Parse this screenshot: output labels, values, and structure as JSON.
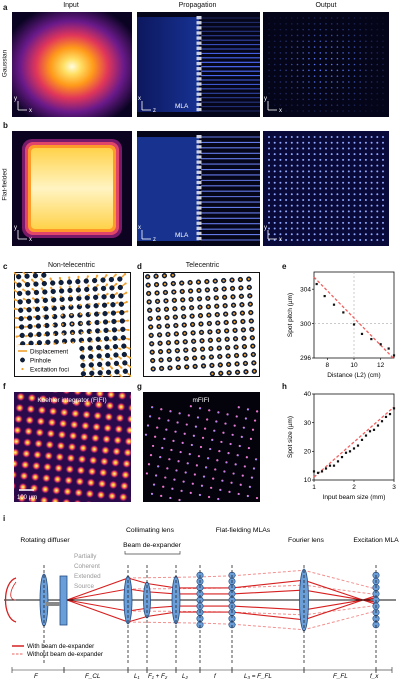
{
  "panels": {
    "a": {
      "letter": "a",
      "row_label": "Gaussian",
      "col_titles": [
        "Input",
        "Propagation",
        "Output"
      ],
      "mla_label": "MLA",
      "axes": {
        "y": "y",
        "x": "x",
        "z": "z"
      }
    },
    "b": {
      "letter": "b",
      "row_label": "Flat-fielded",
      "mla_label": "MLA"
    },
    "c": {
      "letter": "c",
      "title": "Non-telecentric",
      "legend": [
        "Displacement",
        "Pinhole",
        "Excitation foci"
      ]
    },
    "d": {
      "letter": "d",
      "title": "Telecentric"
    },
    "e": {
      "letter": "e"
    },
    "f": {
      "letter": "f",
      "title": "Koehler integrator (FIFI)",
      "scalebar": "100 µm"
    },
    "g": {
      "letter": "g",
      "title": "mFIFI"
    },
    "h": {
      "letter": "h"
    },
    "i": {
      "letter": "i",
      "labels": [
        "Rotating diffuser",
        "Collimating lens",
        "Beam de-expander",
        "Flat-fielding MLAs",
        "Fourier lens",
        "Excitation MLA"
      ],
      "pcs_lines": [
        "Partially",
        "Coherent",
        "Extended",
        "Source"
      ],
      "legend": [
        "With beam de-expander",
        "Without beam de-expander"
      ],
      "bottom_labels": [
        "F",
        "F_CL",
        "L₁",
        "F₁ + F₂",
        "L₂",
        "f",
        "L₃ = F_FL",
        "F_FL",
        "f_x"
      ]
    }
  },
  "chart_data": [
    {
      "type": "scatter",
      "panel": "e",
      "xlabel": "Distance (L2) (cm)",
      "ylabel": "Spot pitch (µm)",
      "xlim": [
        7,
        13
      ],
      "ylim": [
        296,
        306
      ],
      "xticks": [
        8,
        10,
        12
      ],
      "yticks": [
        296,
        300,
        304
      ],
      "x": [
        7.2,
        7.8,
        8.5,
        9.2,
        10.0,
        10.6,
        11.3,
        12.0,
        12.6,
        13.0
      ],
      "y": [
        304.6,
        303.2,
        302.2,
        301.3,
        299.9,
        298.8,
        298.2,
        297.6,
        297.1,
        296.3
      ],
      "fit": {
        "x": [
          7,
          13
        ],
        "y": [
          305.4,
          295.9
        ]
      },
      "reference": {
        "x": 10,
        "y": 300
      }
    },
    {
      "type": "scatter",
      "panel": "h",
      "xlabel": "Input beam size (mm)",
      "ylabel": "Spot size (µm)",
      "xlim": [
        1,
        3
      ],
      "ylim": [
        10,
        40
      ],
      "xticks": [
        1,
        2,
        3
      ],
      "yticks": [
        10,
        20,
        30,
        40
      ],
      "x": [
        1.0,
        1.1,
        1.2,
        1.3,
        1.4,
        1.5,
        1.6,
        1.7,
        1.8,
        1.9,
        2.0,
        2.1,
        2.2,
        2.3,
        2.4,
        2.5,
        2.6,
        2.7,
        2.8,
        2.9,
        3.0
      ],
      "y": [
        13,
        12.5,
        13,
        14,
        15,
        15,
        16.5,
        18,
        19.5,
        20,
        21,
        22,
        24,
        25.5,
        27,
        27.5,
        29,
        30.5,
        32,
        33,
        35
      ],
      "fit": {
        "x": [
          1,
          3
        ],
        "y": [
          11,
          35.5
        ]
      }
    }
  ]
}
